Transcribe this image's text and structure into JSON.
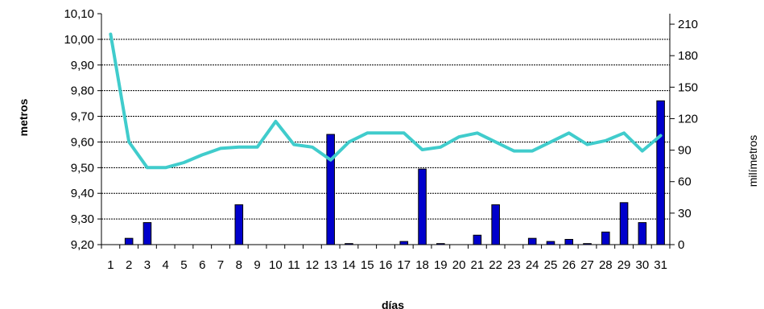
{
  "chart_data": {
    "type": "bar+line",
    "title": "",
    "xlabel": "días",
    "ylabel_left": "metros",
    "ylabel_right": "milímetros",
    "categories": [
      "1",
      "2",
      "3",
      "4",
      "5",
      "6",
      "7",
      "8",
      "9",
      "10",
      "11",
      "12",
      "13",
      "14",
      "15",
      "16",
      "17",
      "18",
      "19",
      "20",
      "21",
      "22",
      "23",
      "24",
      "25",
      "26",
      "27",
      "28",
      "29",
      "30",
      "31"
    ],
    "y_left": {
      "range": [
        9.2,
        10.1
      ],
      "ticks": [
        "9,20",
        "9,30",
        "9,40",
        "9,50",
        "9,60",
        "9,70",
        "9,80",
        "9,90",
        "10,00",
        "10,10"
      ]
    },
    "y_right": {
      "range": [
        0,
        220
      ],
      "ticks": [
        "0",
        "30",
        "60",
        "90",
        "120",
        "150",
        "180",
        "210"
      ]
    },
    "grid": true,
    "series": [
      {
        "kind": "bar",
        "axis": "right",
        "color": "#0000cc",
        "values": [
          0,
          6,
          21,
          0,
          0,
          0,
          0,
          38,
          0,
          0,
          0,
          0,
          105,
          1,
          0,
          0,
          3,
          72,
          1,
          0,
          9,
          38,
          0,
          6,
          3,
          5,
          1,
          12,
          40,
          21,
          137
        ]
      },
      {
        "kind": "line",
        "axis": "left",
        "color": "#40cccc",
        "values": [
          10.02,
          9.6,
          9.5,
          9.5,
          9.52,
          9.55,
          9.575,
          9.58,
          9.58,
          9.68,
          9.59,
          9.58,
          9.53,
          9.6,
          9.635,
          9.635,
          9.635,
          9.57,
          9.58,
          9.62,
          9.635,
          9.6,
          9.565,
          9.565,
          9.6,
          9.635,
          9.59,
          9.605,
          9.635,
          9.565,
          9.625
        ]
      }
    ]
  }
}
